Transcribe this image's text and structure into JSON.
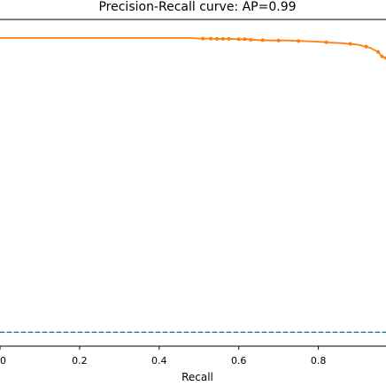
{
  "chart_data": {
    "type": "line",
    "title": "Precision-Recall curve: AP=0.99",
    "xlabel": "Recall",
    "ylabel": "",
    "xlim": [
      0.0,
      0.97
    ],
    "ylim": [
      0.0,
      1.06
    ],
    "xticks": [
      {
        "value": 0.0,
        "label": "0"
      },
      {
        "value": 0.2,
        "label": "0.2"
      },
      {
        "value": 0.4,
        "label": "0.4"
      },
      {
        "value": 0.6,
        "label": "0.6"
      },
      {
        "value": 0.8,
        "label": "0.8"
      }
    ],
    "grid": false,
    "legend": "none",
    "series": [
      {
        "style": "solid",
        "color": "#ff7f0e",
        "points": [
          [
            0.0,
            1.0
          ],
          [
            0.1,
            1.0
          ],
          [
            0.2,
            1.0
          ],
          [
            0.3,
            1.0
          ],
          [
            0.4,
            1.0
          ],
          [
            0.48,
            1.0
          ],
          [
            0.5,
            0.998
          ],
          [
            0.52,
            0.998
          ],
          [
            0.55,
            0.997
          ],
          [
            0.57,
            0.997
          ],
          [
            0.6,
            0.996
          ],
          [
            0.62,
            0.996
          ],
          [
            0.65,
            0.993
          ],
          [
            0.68,
            0.992
          ],
          [
            0.72,
            0.992
          ],
          [
            0.76,
            0.99
          ],
          [
            0.8,
            0.988
          ],
          [
            0.83,
            0.985
          ],
          [
            0.86,
            0.983
          ],
          [
            0.9,
            0.978
          ],
          [
            0.93,
            0.968
          ],
          [
            0.95,
            0.955
          ],
          [
            0.96,
            0.94
          ],
          [
            0.97,
            0.935
          ]
        ],
        "marker_points": [
          [
            0.51,
            0.998
          ],
          [
            0.53,
            0.998
          ],
          [
            0.545,
            0.997
          ],
          [
            0.56,
            0.997
          ],
          [
            0.575,
            0.997
          ],
          [
            0.6,
            0.996
          ],
          [
            0.615,
            0.996
          ],
          [
            0.63,
            0.994
          ],
          [
            0.66,
            0.993
          ],
          [
            0.7,
            0.992
          ],
          [
            0.75,
            0.99
          ],
          [
            0.82,
            0.986
          ],
          [
            0.88,
            0.981
          ],
          [
            0.92,
            0.972
          ],
          [
            0.95,
            0.955
          ],
          [
            0.96,
            0.94
          ],
          [
            0.97,
            0.935
          ]
        ]
      },
      {
        "style": "dashed",
        "color": "#1f77b4",
        "points": [
          [
            0.0,
            0.045
          ],
          [
            0.97,
            0.045
          ]
        ]
      }
    ]
  }
}
